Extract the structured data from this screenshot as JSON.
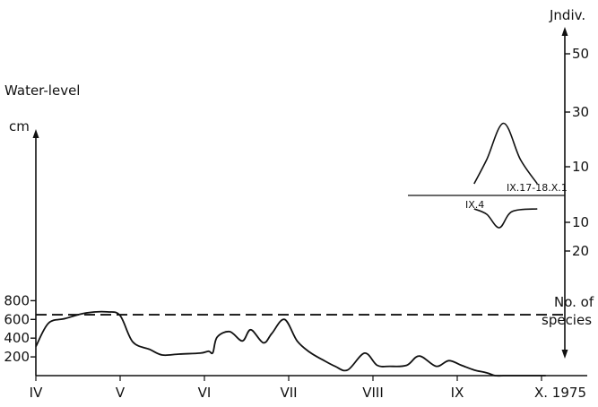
{
  "chart_data": {
    "type": "line",
    "left_axis": {
      "title": "Water-level",
      "unit": "cm",
      "ticks": [
        200,
        400,
        600,
        800
      ],
      "ylim": [
        0,
        800
      ]
    },
    "right_axis": {
      "top_label": "Jndiv.",
      "bottom_label_line1": "No. of",
      "bottom_label_line2": "species",
      "upper_ticks": [
        10,
        30,
        50
      ],
      "lower_ticks": [
        10,
        20
      ]
    },
    "x_axis": {
      "month_labels": [
        "IV",
        "V",
        "VI",
        "VII",
        "VIII",
        "IX",
        "X. 1975"
      ]
    },
    "reference_line": {
      "water_level_cm": 650,
      "style": "dashed"
    },
    "water_level_series": {
      "month_index": [
        0,
        0.15,
        0.35,
        0.6,
        0.85,
        1.0,
        1.15,
        1.35,
        1.5,
        1.7,
        1.95,
        2.05,
        2.1,
        2.15,
        2.3,
        2.45,
        2.55,
        2.7,
        2.8,
        2.95,
        3.1,
        3.25,
        3.4,
        3.55,
        3.7,
        3.9,
        4.05,
        4.2,
        4.4,
        4.55,
        4.75,
        4.9,
        5.05,
        5.2,
        5.35,
        5.45,
        5.55,
        5.6,
        5.7,
        5.8,
        5.95,
        6.05
      ],
      "values_cm": [
        310,
        560,
        610,
        670,
        680,
        640,
        360,
        280,
        220,
        230,
        240,
        260,
        245,
        410,
        470,
        370,
        490,
        350,
        450,
        600,
        370,
        250,
        170,
        100,
        60,
        240,
        110,
        100,
        110,
        210,
        100,
        160,
        110,
        60,
        30,
        0,
        0,
        0,
        0,
        0,
        0,
        0
      ]
    },
    "individuals_series": {
      "label": "IX.17-18.X.1",
      "month_index": [
        5.2,
        5.35,
        5.55,
        5.75,
        5.95
      ],
      "values": [
        0,
        10,
        25,
        10,
        0
      ]
    },
    "species_series": {
      "label": "IX.4",
      "month_index": [
        5.2,
        5.35,
        5.5,
        5.65,
        5.95
      ],
      "values": [
        0,
        2,
        7,
        1,
        0
      ]
    }
  }
}
